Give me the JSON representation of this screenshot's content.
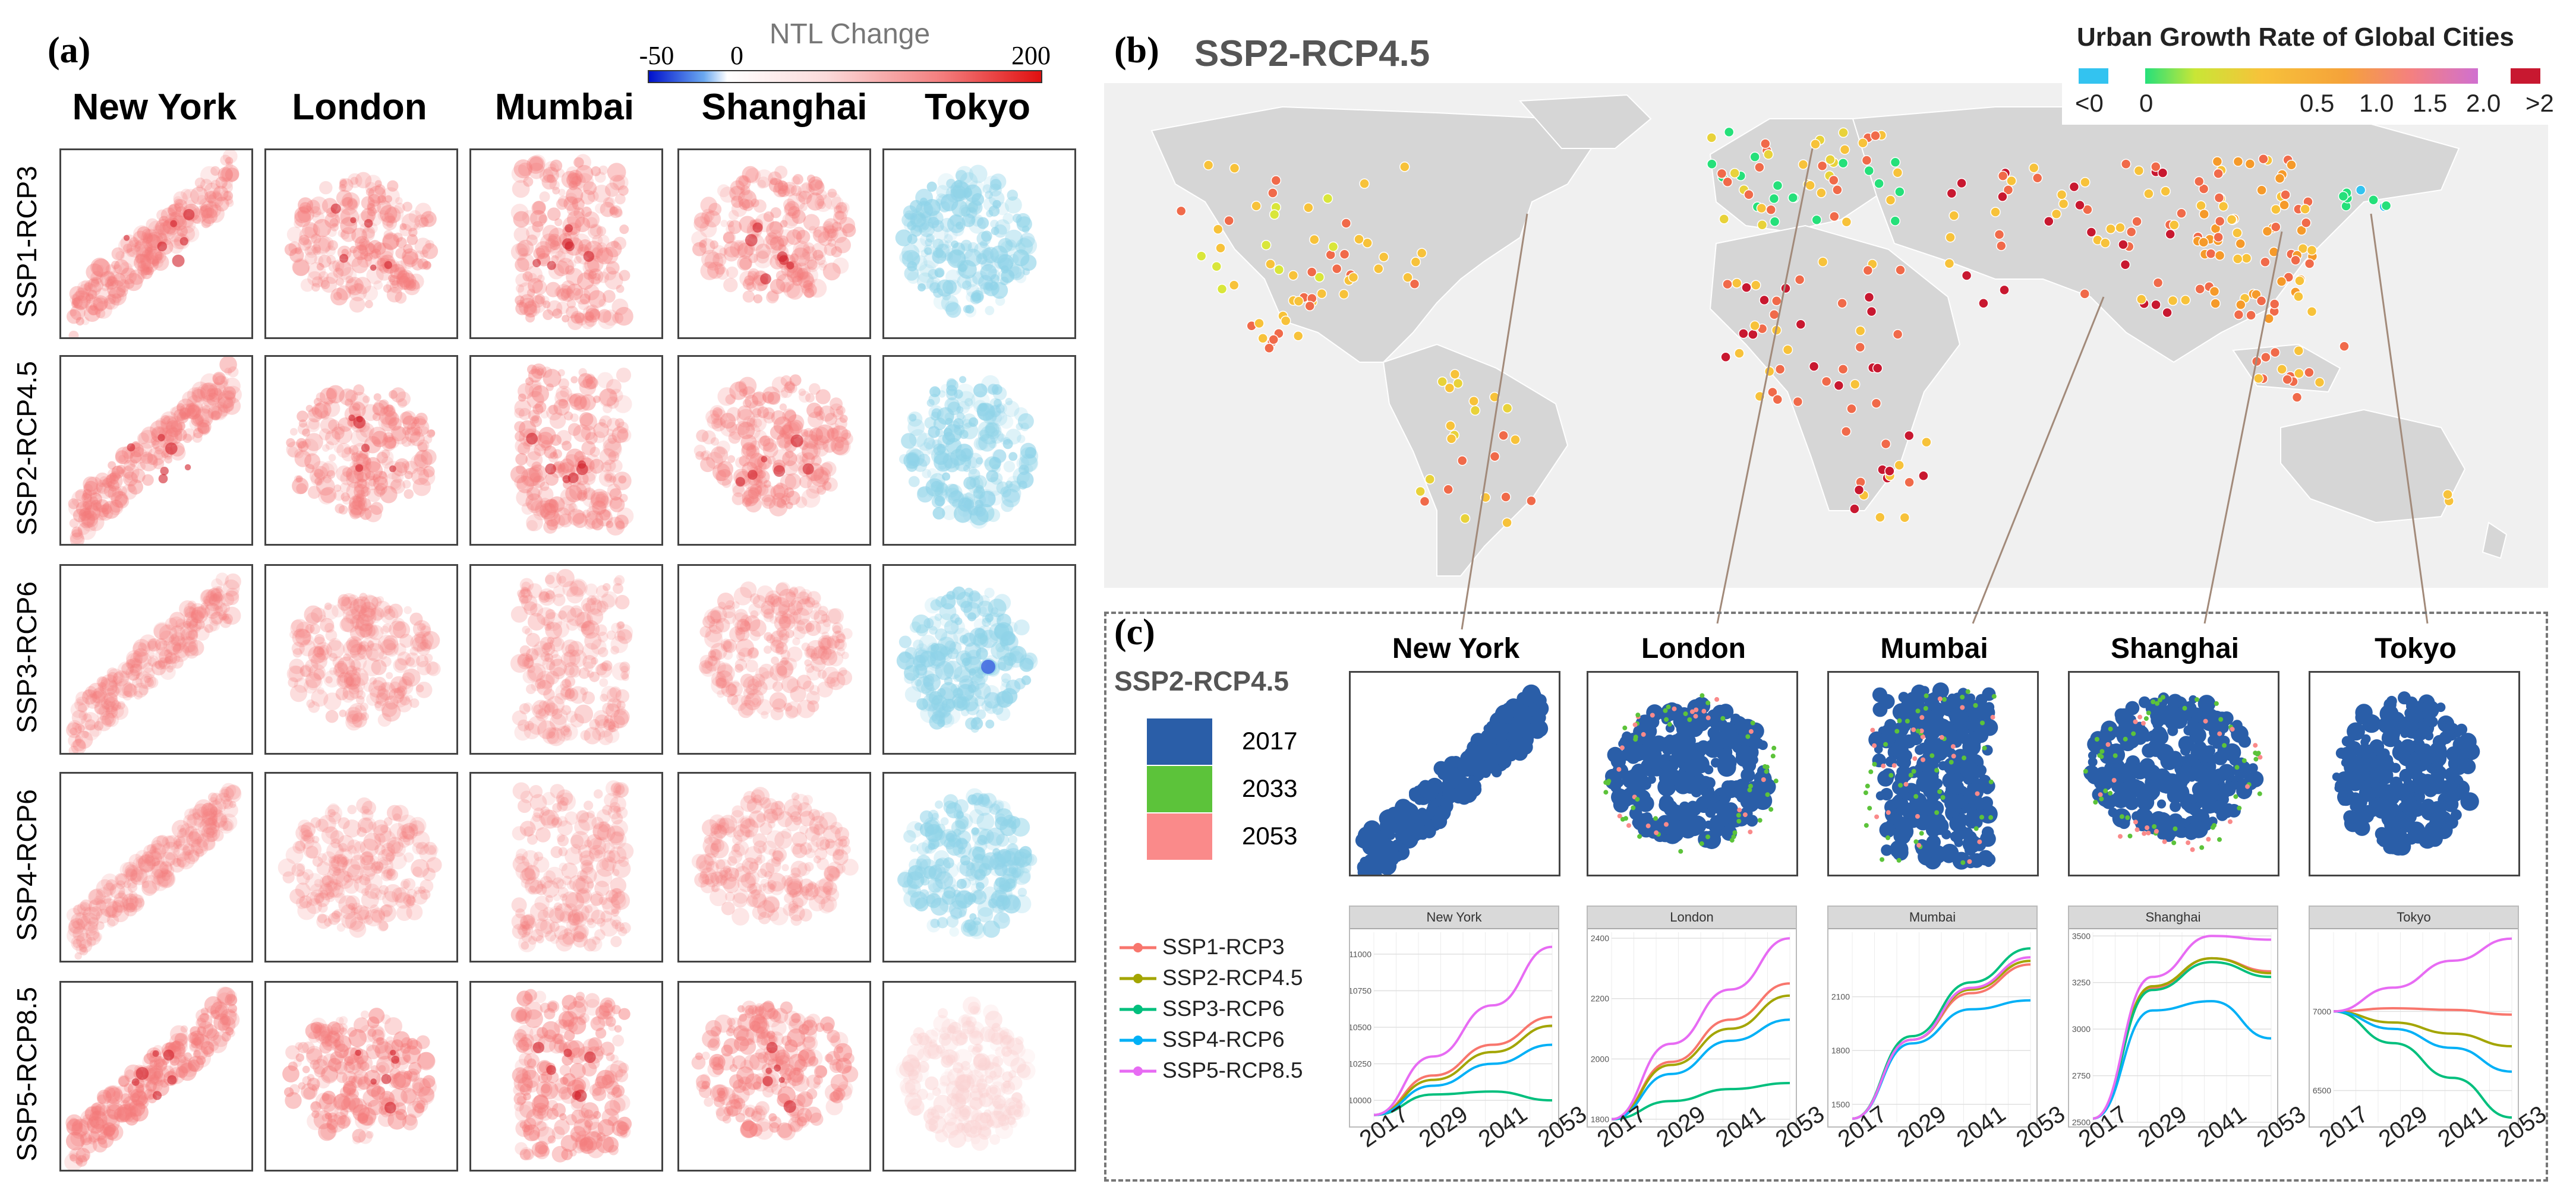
{
  "panel_a": {
    "label": "(a)",
    "colorbar": {
      "title": "NTL Change",
      "min_label": "-50",
      "zero_label": "0",
      "max_label": "200",
      "neg_color": "#0010cc",
      "pos_color": "#e01010"
    },
    "cities": [
      "New York",
      "London",
      "Mumbai",
      "Shanghai",
      "Tokyo"
    ],
    "scenarios": [
      "SSP1-RCP3",
      "SSP2-RCP4.5",
      "SSP3-RCP6",
      "SSP4-RCP6",
      "SSP5-RCP8.5"
    ]
  },
  "panel_b": {
    "label": "(b)",
    "title": "SSP2-RCP4.5",
    "legend_title": "Urban Growth Rate of Global Cities",
    "legend_labels": [
      "<0",
      "0",
      "0.5",
      "1.0",
      "1.5",
      "2.0",
      ">2"
    ],
    "colors": {
      "neg": "#33c3f0",
      "low": "#25e07a",
      "mid": "#f7c23a",
      "high": "#f06a4a",
      "very_high": "#c81830",
      "land": "#d6d6d6",
      "ocean": "#f0f0f0"
    }
  },
  "panel_c": {
    "label": "(c)",
    "scenario_title": "SSP2-RCP4.5",
    "cities": [
      "New York",
      "London",
      "Mumbai",
      "Shanghai",
      "Tokyo"
    ],
    "year_legend": [
      {
        "year": "2017",
        "color": "#2a5ea8"
      },
      {
        "year": "2033",
        "color": "#5cc33a"
      },
      {
        "year": "2053",
        "color": "#fa8a8a"
      }
    ],
    "line_legend": [
      {
        "name": "SSP1-RCP3",
        "color": "#f8766d"
      },
      {
        "name": "SSP2-RCP4.5",
        "color": "#a3a500"
      },
      {
        "name": "SSP3-RCP6",
        "color": "#00bf7d"
      },
      {
        "name": "SSP4-RCP6",
        "color": "#00b0f6"
      },
      {
        "name": "SSP5-RCP8.5",
        "color": "#e76bf3"
      }
    ]
  },
  "chart_data": [
    {
      "type": "line",
      "title": "New York",
      "x": [
        2017,
        2029,
        2041,
        2053
      ],
      "xtick_labels": [
        "2017",
        "2029",
        "2041",
        "2053"
      ],
      "ylim": [
        9850,
        11150
      ],
      "ytick_labels": [
        "10000",
        "10250",
        "10500",
        "10750",
        "11000"
      ],
      "series": [
        {
          "name": "SSP1-RCP3",
          "values": [
            9900,
            10170,
            10380,
            10570
          ]
        },
        {
          "name": "SSP2-RCP4.5",
          "values": [
            9900,
            10140,
            10330,
            10510
          ]
        },
        {
          "name": "SSP3-RCP6",
          "values": [
            9900,
            10040,
            10060,
            10000
          ]
        },
        {
          "name": "SSP4-RCP6",
          "values": [
            9900,
            10100,
            10250,
            10380
          ]
        },
        {
          "name": "SSP5-RCP8.5",
          "values": [
            9900,
            10300,
            10650,
            11050
          ]
        }
      ]
    },
    {
      "type": "line",
      "title": "London",
      "x": [
        2017,
        2029,
        2041,
        2053
      ],
      "xtick_labels": [
        "2017",
        "2029",
        "2041",
        "2053"
      ],
      "ylim": [
        1790,
        2420
      ],
      "ytick_labels": [
        "1800",
        "2000",
        "2200",
        "2400"
      ],
      "series": [
        {
          "name": "SSP1-RCP3",
          "values": [
            1800,
            1990,
            2130,
            2250
          ]
        },
        {
          "name": "SSP2-RCP4.5",
          "values": [
            1800,
            1980,
            2100,
            2210
          ]
        },
        {
          "name": "SSP3-RCP6",
          "values": [
            1800,
            1860,
            1900,
            1920
          ]
        },
        {
          "name": "SSP4-RCP6",
          "values": [
            1800,
            1950,
            2060,
            2130
          ]
        },
        {
          "name": "SSP5-RCP8.5",
          "values": [
            1800,
            2050,
            2230,
            2400
          ]
        }
      ]
    },
    {
      "type": "line",
      "title": "Mumbai",
      "x": [
        2017,
        2029,
        2041,
        2053
      ],
      "xtick_labels": [
        "2017",
        "2029",
        "2041",
        "2053"
      ],
      "ylim": [
        1400,
        2460
      ],
      "ytick_labels": [
        "1500",
        "1800",
        "2100"
      ],
      "series": [
        {
          "name": "SSP1-RCP3",
          "values": [
            1420,
            1860,
            2120,
            2280
          ]
        },
        {
          "name": "SSP2-RCP4.5",
          "values": [
            1420,
            1860,
            2140,
            2300
          ]
        },
        {
          "name": "SSP3-RCP6",
          "values": [
            1420,
            1880,
            2180,
            2370
          ]
        },
        {
          "name": "SSP4-RCP6",
          "values": [
            1420,
            1840,
            2030,
            2080
          ]
        },
        {
          "name": "SSP5-RCP8.5",
          "values": [
            1420,
            1860,
            2150,
            2320
          ]
        }
      ]
    },
    {
      "type": "line",
      "title": "Shanghai",
      "x": [
        2017,
        2029,
        2041,
        2053
      ],
      "xtick_labels": [
        "2017",
        "2029",
        "2041",
        "2053"
      ],
      "ylim": [
        2500,
        3520
      ],
      "ytick_labels": [
        "2500",
        "2750",
        "3000",
        "3250",
        "3500"
      ],
      "series": [
        {
          "name": "SSP1-RCP3",
          "values": [
            2520,
            3220,
            3380,
            3310
          ]
        },
        {
          "name": "SSP2-RCP4.5",
          "values": [
            2520,
            3230,
            3380,
            3300
          ]
        },
        {
          "name": "SSP3-RCP6",
          "values": [
            2520,
            3210,
            3360,
            3280
          ]
        },
        {
          "name": "SSP4-RCP6",
          "values": [
            2520,
            3100,
            3150,
            2950
          ]
        },
        {
          "name": "SSP5-RCP8.5",
          "values": [
            2520,
            3280,
            3500,
            3480
          ]
        }
      ]
    },
    {
      "type": "line",
      "title": "Tokyo",
      "x": [
        2017,
        2029,
        2041,
        2053
      ],
      "xtick_labels": [
        "2017",
        "2029",
        "2041",
        "2053"
      ],
      "ylim": [
        6300,
        7500
      ],
      "ytick_labels": [
        "6500",
        "7000"
      ],
      "series": [
        {
          "name": "SSP1-RCP3",
          "values": [
            7000,
            7020,
            7010,
            6980
          ]
        },
        {
          "name": "SSP2-RCP4.5",
          "values": [
            7000,
            6930,
            6860,
            6780
          ]
        },
        {
          "name": "SSP3-RCP6",
          "values": [
            7000,
            6800,
            6580,
            6330
          ]
        },
        {
          "name": "SSP4-RCP6",
          "values": [
            7000,
            6890,
            6770,
            6620
          ]
        },
        {
          "name": "SSP5-RCP8.5",
          "values": [
            7000,
            7150,
            7320,
            7460
          ]
        }
      ]
    }
  ]
}
